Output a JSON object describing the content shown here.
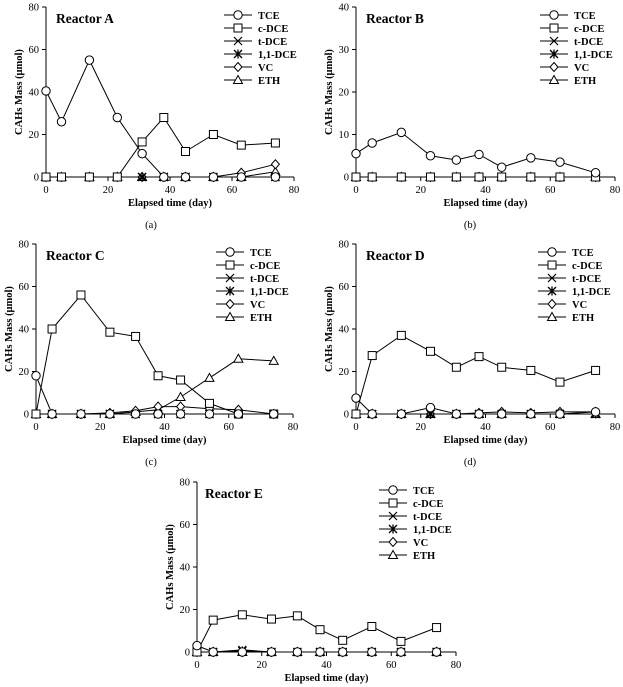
{
  "chart_data": [
    {
      "type": "line",
      "title": "Reactor A",
      "caption": "(a)",
      "xlabel": "Elapsed time (day)",
      "ylabel": "CAHs Mass (μmol)",
      "xlim": [
        0,
        80
      ],
      "ylim": [
        0,
        80
      ],
      "xticks": [
        "0",
        "20",
        "40",
        "60",
        "80"
      ],
      "yticks": [
        "0",
        "20",
        "40",
        "60",
        "80"
      ],
      "grid": false,
      "legend": "top-right",
      "series": [
        {
          "name": "TCE",
          "marker": "circle",
          "x": [
            0,
            5,
            14,
            23,
            31,
            38,
            45,
            54,
            63,
            74
          ],
          "y": [
            40.5,
            26,
            55,
            28,
            11,
            0,
            0,
            0,
            0,
            0
          ]
        },
        {
          "name": "c-DCE",
          "marker": "square",
          "x": [
            0,
            5,
            14,
            23,
            31,
            38,
            45,
            54,
            63,
            74
          ],
          "y": [
            0,
            0,
            0,
            0,
            16.5,
            28,
            12,
            20,
            15,
            16
          ]
        },
        {
          "name": "t-DCE",
          "marker": "x",
          "x": [
            0,
            5,
            14,
            23,
            31,
            38,
            45,
            54,
            63,
            74
          ],
          "y": [
            0,
            0,
            0,
            0,
            0,
            0,
            0,
            0,
            0,
            0
          ]
        },
        {
          "name": "1,1-DCE",
          "marker": "asterisk",
          "x": [
            0,
            5,
            14,
            23,
            31,
            38,
            45,
            54,
            63,
            74
          ],
          "y": [
            0,
            0,
            0,
            0,
            0,
            0,
            0,
            0,
            0,
            0
          ]
        },
        {
          "name": "VC",
          "marker": "diamond",
          "x": [
            0,
            5,
            14,
            23,
            31,
            38,
            45,
            54,
            63,
            74
          ],
          "y": [
            0,
            0,
            0,
            0,
            0,
            0,
            0,
            0,
            2,
            6
          ]
        },
        {
          "name": "ETH",
          "marker": "triangle",
          "x": [
            0,
            5,
            14,
            23,
            31,
            38,
            45,
            54,
            63,
            74
          ],
          "y": [
            0,
            0,
            0,
            0,
            0,
            0,
            0,
            0,
            0,
            2.5
          ]
        }
      ]
    },
    {
      "type": "line",
      "title": "Reactor B",
      "caption": "(b)",
      "xlabel": "Elapsed time (day)",
      "ylabel": "CAHs Mass (μmol)",
      "xlim": [
        0,
        80
      ],
      "ylim": [
        0,
        40
      ],
      "xticks": [
        "0",
        "20",
        "40",
        "60",
        "80"
      ],
      "yticks": [
        "0",
        "10",
        "20",
        "30",
        "40"
      ],
      "grid": false,
      "legend": "top-right",
      "series": [
        {
          "name": "TCE",
          "marker": "circle",
          "x": [
            0,
            5,
            14,
            23,
            31,
            38,
            45,
            54,
            63,
            74
          ],
          "y": [
            5.5,
            8,
            10.5,
            5,
            4,
            5.3,
            2.3,
            4.5,
            3.5,
            1
          ]
        },
        {
          "name": "c-DCE",
          "marker": "square",
          "x": [
            0,
            5,
            14,
            23,
            31,
            38,
            45,
            54,
            63,
            74
          ],
          "y": [
            0,
            0,
            0,
            0,
            0,
            0,
            0,
            0,
            0,
            0
          ]
        },
        {
          "name": "t-DCE",
          "marker": "x",
          "x": [
            0,
            5,
            14,
            23,
            31,
            38,
            45,
            54,
            63,
            74
          ],
          "y": [
            0,
            0,
            0,
            0,
            0,
            0,
            0,
            0,
            0,
            0
          ]
        },
        {
          "name": "1,1-DCE",
          "marker": "asterisk",
          "x": [
            0,
            5,
            14,
            23,
            31,
            38,
            45,
            54,
            63,
            74
          ],
          "y": [
            0,
            0,
            0,
            0,
            0,
            0,
            0,
            0,
            0,
            0
          ]
        },
        {
          "name": "VC",
          "marker": "diamond",
          "x": [
            0,
            5,
            14,
            23,
            31,
            38,
            45,
            54,
            63,
            74
          ],
          "y": [
            0,
            0,
            0,
            0,
            0,
            0,
            0,
            0,
            0,
            0
          ]
        },
        {
          "name": "ETH",
          "marker": "triangle",
          "x": [
            0,
            5,
            14,
            23,
            31,
            38,
            45,
            54,
            63,
            74
          ],
          "y": [
            0,
            0,
            0,
            0,
            0,
            0,
            0,
            0,
            0,
            0
          ]
        }
      ]
    },
    {
      "type": "line",
      "title": "Reactor C",
      "caption": "(c)",
      "xlabel": "Elapsed time (day)",
      "ylabel": "CAHs Mass (μmol)",
      "xlim": [
        0,
        80
      ],
      "ylim": [
        0,
        80
      ],
      "xticks": [
        "0",
        "20",
        "40",
        "60",
        "80"
      ],
      "yticks": [
        "0",
        "20",
        "40",
        "60",
        "80"
      ],
      "grid": false,
      "legend": "top-right",
      "series": [
        {
          "name": "TCE",
          "marker": "circle",
          "x": [
            0,
            5,
            14,
            23,
            31,
            38,
            45,
            54,
            63,
            74
          ],
          "y": [
            18,
            0,
            0,
            0,
            0,
            0,
            0,
            0,
            0,
            0
          ]
        },
        {
          "name": "c-DCE",
          "marker": "square",
          "x": [
            0,
            5,
            14,
            23,
            31,
            38,
            45,
            54,
            63,
            74
          ],
          "y": [
            0,
            40,
            56,
            38.5,
            36.5,
            18,
            16,
            5,
            0,
            0
          ]
        },
        {
          "name": "t-DCE",
          "marker": "x",
          "x": [
            0,
            5,
            14,
            23,
            31,
            38,
            45,
            54,
            63,
            74
          ],
          "y": [
            0,
            0,
            0,
            0,
            0,
            0,
            0,
            0,
            0,
            0
          ]
        },
        {
          "name": "1,1-DCE",
          "marker": "asterisk",
          "x": [
            0,
            5,
            14,
            23,
            31,
            38,
            45,
            54,
            63,
            74
          ],
          "y": [
            0,
            0,
            0,
            0,
            0,
            0,
            0,
            0,
            0,
            0
          ]
        },
        {
          "name": "VC",
          "marker": "diamond",
          "x": [
            0,
            5,
            14,
            23,
            31,
            38,
            45,
            54,
            63,
            74
          ],
          "y": [
            0,
            0,
            0,
            0.5,
            1.5,
            3.5,
            3.5,
            2.5,
            2,
            0
          ]
        },
        {
          "name": "ETH",
          "marker": "triangle",
          "x": [
            0,
            5,
            14,
            23,
            31,
            38,
            45,
            54,
            63,
            74
          ],
          "y": [
            0,
            0,
            0,
            0,
            1,
            2,
            8,
            17,
            26,
            25
          ]
        }
      ]
    },
    {
      "type": "line",
      "title": "Reactor D",
      "caption": "(d)",
      "xlabel": "Elapsed time (day)",
      "ylabel": "CAHs Mass (μmol)",
      "xlim": [
        0,
        80
      ],
      "ylim": [
        0,
        80
      ],
      "xticks": [
        "0",
        "20",
        "40",
        "60",
        "80"
      ],
      "yticks": [
        "0",
        "20",
        "40",
        "60",
        "80"
      ],
      "grid": false,
      "legend": "top-right",
      "series": [
        {
          "name": "TCE",
          "marker": "circle",
          "x": [
            0,
            5,
            14,
            23,
            31,
            38,
            45,
            54,
            63,
            74
          ],
          "y": [
            7.5,
            0,
            0,
            3,
            0,
            0,
            0,
            0,
            0,
            1
          ]
        },
        {
          "name": "c-DCE",
          "marker": "square",
          "x": [
            0,
            5,
            14,
            23,
            31,
            38,
            45,
            54,
            63,
            74
          ],
          "y": [
            0,
            27.5,
            37,
            29.5,
            22,
            27,
            22,
            20.5,
            15,
            20.5
          ]
        },
        {
          "name": "t-DCE",
          "marker": "x",
          "x": [
            0,
            5,
            14,
            23,
            31,
            38,
            45,
            54,
            63,
            74
          ],
          "y": [
            0,
            0,
            0,
            0,
            0,
            0,
            0,
            0,
            0,
            0
          ]
        },
        {
          "name": "1,1-DCE",
          "marker": "asterisk",
          "x": [
            0,
            5,
            14,
            23,
            31,
            38,
            45,
            54,
            63,
            74
          ],
          "y": [
            0,
            0,
            0,
            0,
            0,
            0,
            0,
            0,
            0,
            0
          ]
        },
        {
          "name": "VC",
          "marker": "diamond",
          "x": [
            0,
            5,
            14,
            23,
            31,
            38,
            45,
            54,
            63,
            74
          ],
          "y": [
            0,
            0,
            0,
            0,
            0,
            0.5,
            1,
            0.5,
            1,
            1
          ]
        },
        {
          "name": "ETH",
          "marker": "triangle",
          "x": [
            0,
            5,
            14,
            23,
            31,
            38,
            45,
            54,
            63,
            74
          ],
          "y": [
            0,
            0,
            0,
            0,
            0,
            0,
            0,
            0,
            0,
            0
          ]
        }
      ]
    },
    {
      "type": "line",
      "title": "Reactor E",
      "caption": "",
      "xlabel": "Elapsed time (day)",
      "ylabel": "CAHs Mass (μmol)",
      "xlim": [
        0,
        80
      ],
      "ylim": [
        0,
        80
      ],
      "xticks": [
        "0",
        "20",
        "40",
        "60",
        "80"
      ],
      "yticks": [
        "0",
        "20",
        "40",
        "60",
        "80"
      ],
      "grid": false,
      "legend": "top-right",
      "series": [
        {
          "name": "TCE",
          "marker": "circle",
          "x": [
            0,
            5,
            14,
            23,
            31,
            38,
            45,
            54,
            63,
            74
          ],
          "y": [
            3,
            0,
            0,
            0,
            0,
            0,
            0,
            0,
            0,
            0
          ]
        },
        {
          "name": "c-DCE",
          "marker": "square",
          "x": [
            0,
            5,
            14,
            23,
            31,
            38,
            45,
            54,
            63,
            74
          ],
          "y": [
            0,
            15,
            17.5,
            15.5,
            17,
            10.5,
            5.5,
            12,
            5,
            11.5
          ]
        },
        {
          "name": "t-DCE",
          "marker": "x",
          "x": [
            0,
            5,
            14,
            23,
            31,
            38,
            45,
            54,
            63,
            74
          ],
          "y": [
            0,
            0,
            1,
            0,
            0,
            0,
            0,
            0,
            0,
            0
          ]
        },
        {
          "name": "1,1-DCE",
          "marker": "asterisk",
          "x": [
            0,
            5,
            14,
            23,
            31,
            38,
            45,
            54,
            63,
            74
          ],
          "y": [
            0,
            0,
            0.5,
            0,
            0,
            0,
            0,
            0,
            0,
            0
          ]
        },
        {
          "name": "VC",
          "marker": "diamond",
          "x": [
            0,
            5,
            14,
            23,
            31,
            38,
            45,
            54,
            63,
            74
          ],
          "y": [
            0,
            0,
            0,
            0,
            0,
            0,
            0,
            0,
            0,
            0
          ]
        },
        {
          "name": "ETH",
          "marker": "triangle",
          "x": [
            0,
            5,
            14,
            23,
            31,
            38,
            45,
            54,
            63,
            74
          ],
          "y": [
            0,
            0,
            0,
            0,
            0,
            0,
            0,
            0,
            0,
            0
          ]
        }
      ]
    }
  ]
}
